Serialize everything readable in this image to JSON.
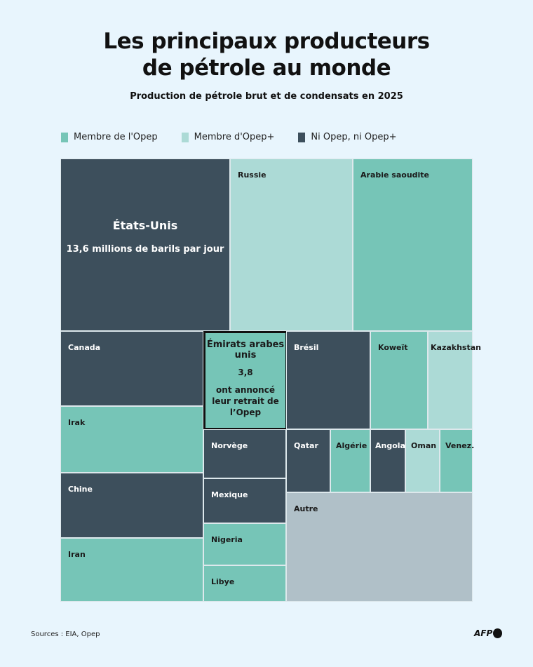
{
  "title_line1": "Les principaux producteurs",
  "title_line2": "de pétrole au monde",
  "subtitle": "Production de pétrole brut et de condensats en 2025",
  "legend": [
    {
      "label": "Membre de l'Opep",
      "color": "#76c5b7"
    },
    {
      "label": "Membre d'Opep+",
      "color": "#acdad6"
    },
    {
      "label": "Ni Opep, ni Opep+",
      "color": "#3d4f5c"
    }
  ],
  "chart_data": {
    "type": "treemap",
    "title": "Les principaux producteurs de pétrole au monde",
    "subtitle": "Production de pétrole brut et de condensats en 2025",
    "unit": "millions de barils par jour",
    "items": [
      {
        "name": "États-Unis",
        "group": "Ni Opep, ni Opep+",
        "value": 13.6,
        "value_label": "13,6 millions de barils par jour"
      },
      {
        "name": "Russie",
        "group": "Membre d'Opep+"
      },
      {
        "name": "Arabie saoudite",
        "group": "Membre de l'Opep"
      },
      {
        "name": "Canada",
        "group": "Ni Opep, ni Opep+"
      },
      {
        "name": "Irak",
        "group": "Membre de l'Opep"
      },
      {
        "name": "Chine",
        "group": "Ni Opep, ni Opep+"
      },
      {
        "name": "Iran",
        "group": "Membre de l'Opep"
      },
      {
        "name": "Émirats arabes unis",
        "group": "Membre de l'Opep",
        "value": 3.8,
        "value_label": "3,8",
        "note": "ont annoncé leur retrait de l’Opep"
      },
      {
        "name": "Norvège",
        "group": "Ni Opep, ni Opep+"
      },
      {
        "name": "Mexique",
        "group": "Ni Opep, ni Opep+"
      },
      {
        "name": "Nigeria",
        "group": "Membre de l'Opep"
      },
      {
        "name": "Libye",
        "group": "Membre de l'Opep"
      },
      {
        "name": "Brésil",
        "group": "Ni Opep, ni Opep+"
      },
      {
        "name": "Koweït",
        "group": "Membre de l'Opep"
      },
      {
        "name": "Kazakhstan",
        "group": "Membre d'Opep+"
      },
      {
        "name": "Qatar",
        "group": "Ni Opep, ni Opep+"
      },
      {
        "name": "Algérie",
        "group": "Membre de l'Opep"
      },
      {
        "name": "Angola",
        "group": "Ni Opep, ni Opep+"
      },
      {
        "name": "Oman",
        "group": "Membre d'Opep+"
      },
      {
        "name": "Venez.",
        "group": "Membre de l'Opep"
      },
      {
        "name": "Autre",
        "group": "Autre"
      }
    ]
  },
  "footer": {
    "sources": "Sources : EIA, Opep",
    "logo": "AFP"
  }
}
